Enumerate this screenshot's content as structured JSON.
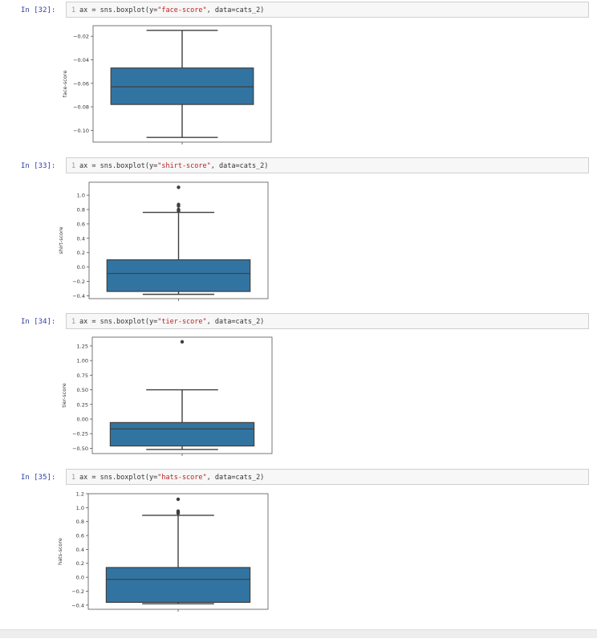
{
  "cells": [
    {
      "prompt": "In [32]:",
      "line_number": "1",
      "code": {
        "prefix": "ax = sns.boxplot(y=",
        "column": "\"face-score\"",
        "suffix": ", data=cats_2)"
      },
      "chart_data": {
        "type": "box",
        "ylabel": "face-score",
        "ylim": [
          -0.11,
          -0.011
        ],
        "yticks": [
          -0.02,
          -0.04,
          -0.06,
          -0.08,
          -0.1
        ],
        "ytick_labels": [
          "−0.02",
          "−0.04",
          "−0.06",
          "−0.08",
          "−0.10"
        ],
        "whisker_low": -0.106,
        "q1": -0.078,
        "median": -0.063,
        "q3": -0.047,
        "whisker_high": -0.015,
        "outliers": []
      }
    },
    {
      "prompt": "In [33]:",
      "line_number": "1",
      "code": {
        "prefix": "ax = sns.boxplot(y=",
        "column": "\"shirt-score\"",
        "suffix": ", data=cats_2)"
      },
      "chart_data": {
        "type": "box",
        "ylabel": "shirt-score",
        "ylim": [
          -0.44,
          1.18
        ],
        "yticks": [
          1.0,
          0.8,
          0.6,
          0.4,
          0.2,
          0.0,
          -0.2,
          -0.4
        ],
        "ytick_labels": [
          "1.0",
          "0.8",
          "0.6",
          "0.4",
          "0.2",
          "0.0",
          "−0.2",
          "−0.4"
        ],
        "whisker_low": -0.38,
        "q1": -0.34,
        "median": -0.09,
        "q3": 0.1,
        "whisker_high": 0.76,
        "outliers": [
          1.11,
          0.87,
          0.85,
          0.8,
          0.78
        ]
      }
    },
    {
      "prompt": "In [34]:",
      "line_number": "1",
      "code": {
        "prefix": "ax = sns.boxplot(y=",
        "column": "\"tier-score\"",
        "suffix": ", data=cats_2)"
      },
      "chart_data": {
        "type": "box",
        "ylabel": "tier-score",
        "ylim": [
          -0.59,
          1.4
        ],
        "yticks": [
          1.25,
          1.0,
          0.75,
          0.5,
          0.25,
          0.0,
          -0.25,
          -0.5
        ],
        "ytick_labels": [
          "1.25",
          "1.00",
          "0.75",
          "0.50",
          "0.25",
          "0.00",
          "−0.25",
          "−0.50"
        ],
        "whisker_low": -0.52,
        "q1": -0.46,
        "median": -0.17,
        "q3": -0.06,
        "whisker_high": 0.5,
        "outliers": [
          1.32
        ]
      }
    },
    {
      "prompt": "In [35]:",
      "line_number": "1",
      "code": {
        "prefix": "ax = sns.boxplot(y=",
        "column": "\"hats-score\"",
        "suffix": ", data=cats_2)"
      },
      "chart_data": {
        "type": "box",
        "ylabel": "hats-score",
        "ylim": [
          -0.46,
          1.2
        ],
        "yticks": [
          1.2,
          1.0,
          0.8,
          0.6,
          0.4,
          0.2,
          0.0,
          -0.2,
          -0.4
        ],
        "ytick_labels": [
          "1.2",
          "1.0",
          "0.8",
          "0.6",
          "0.4",
          "0.2",
          "0.0",
          "−0.2",
          "−0.4"
        ],
        "whisker_low": -0.38,
        "q1": -0.36,
        "median": -0.03,
        "q3": 0.14,
        "whisker_high": 0.89,
        "outliers": [
          1.12,
          0.95,
          0.93,
          0.92
        ]
      }
    }
  ],
  "colors": {
    "box": "#3274a1",
    "line": "#3f3f3f",
    "prompt": "#303f9f",
    "string": "#ba2121"
  }
}
